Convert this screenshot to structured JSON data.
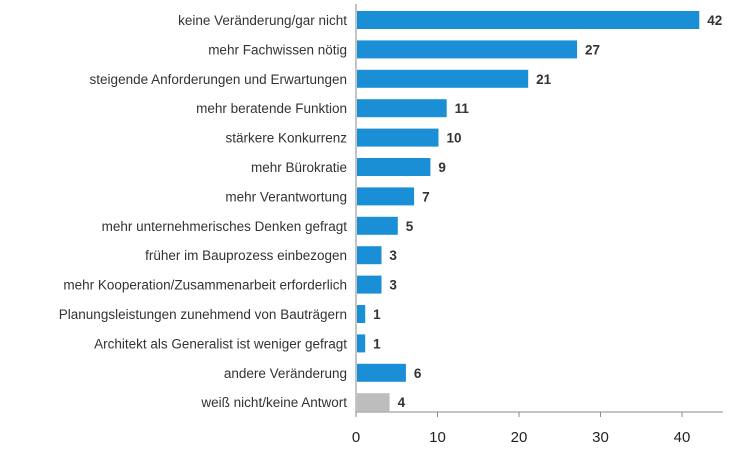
{
  "chart_data": {
    "type": "bar",
    "orientation": "horizontal",
    "title": "",
    "xlabel": "",
    "ylabel": "",
    "xlim": [
      0,
      45
    ],
    "ticks": [
      0,
      10,
      20,
      30,
      40
    ],
    "grid": false,
    "legend": "none",
    "colors": {
      "primary": "#1b8fd6",
      "secondary": "#bdbdbd",
      "axis": "#888888"
    },
    "categories": [
      "keine Veränderung/gar nicht",
      "mehr Fachwissen nötig",
      "steigende Anforderungen und Erwartungen",
      "mehr beratende Funktion",
      "stärkere Konkurrenz",
      "mehr Bürokratie",
      "mehr Verantwortung",
      "mehr unternehmerisches Denken gefragt",
      "früher im Bauprozess einbezogen",
      "mehr Kooperation/Zusammenarbeit erforderlich",
      "Planungsleistungen zunehmend von Bauträgern",
      "Architekt als Generalist ist weniger gefragt",
      "andere Veränderung",
      "weiß nicht/keine Antwort"
    ],
    "values": [
      42,
      27,
      21,
      11,
      10,
      9,
      7,
      5,
      3,
      3,
      1,
      1,
      6,
      4
    ],
    "bar_colors": [
      "primary",
      "primary",
      "primary",
      "primary",
      "primary",
      "primary",
      "primary",
      "primary",
      "primary",
      "primary",
      "primary",
      "primary",
      "primary",
      "secondary"
    ]
  }
}
